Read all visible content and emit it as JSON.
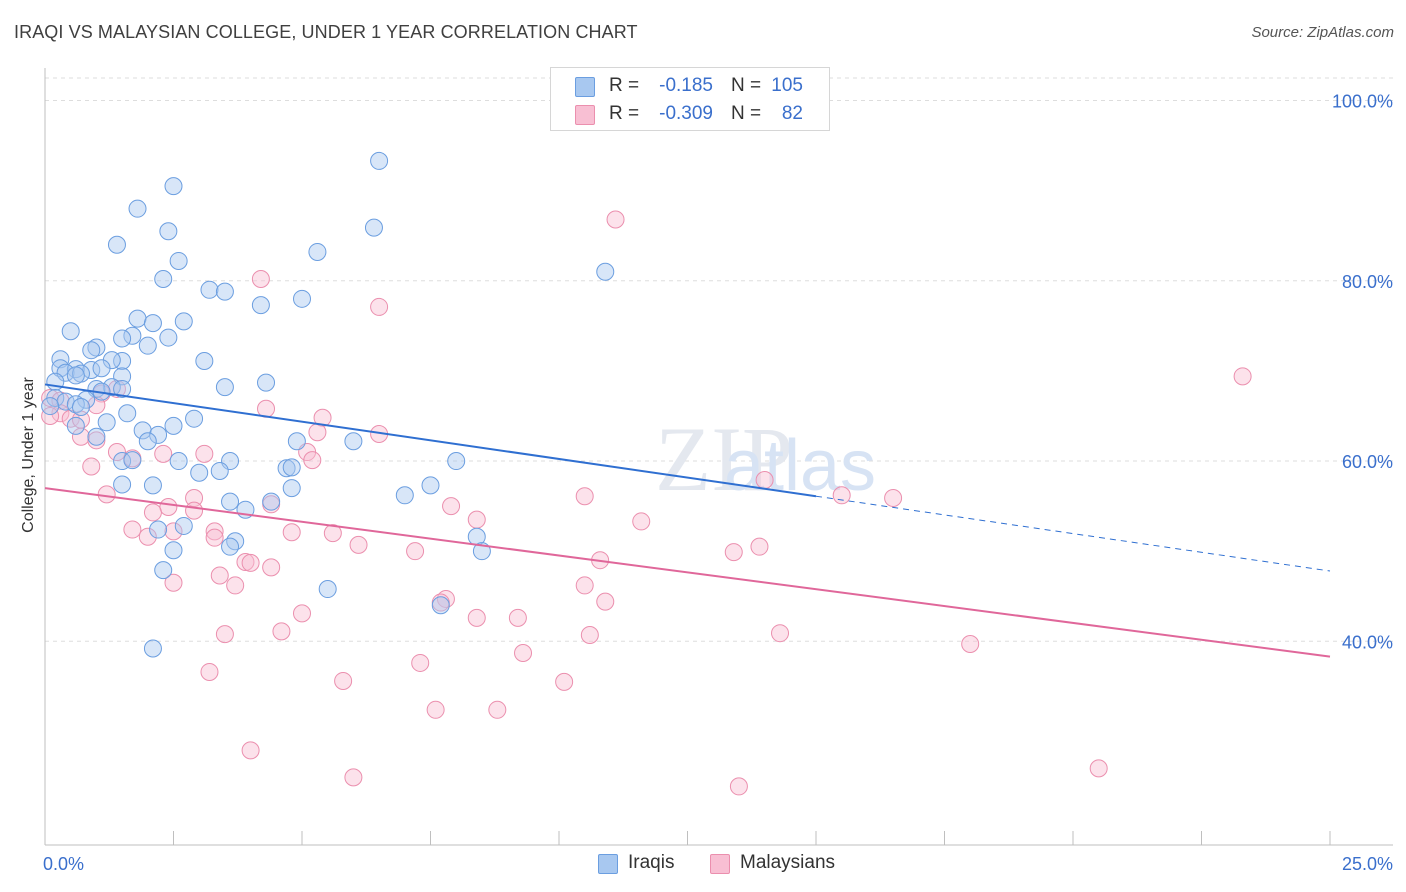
{
  "title": "IRAQI VS MALAYSIAN COLLEGE, UNDER 1 YEAR CORRELATION CHART",
  "source": "Source: ZipAtlas.com",
  "colors": {
    "iraqis_fill": "#a8c8f0",
    "iraqis_stroke": "#6b9ee0",
    "iraqis_line": "#2f6fd1",
    "malaysians_fill": "#f8bfd3",
    "malaysians_stroke": "#eb8fae",
    "malaysians_line": "#e0679a",
    "axis_text": "#3a6fcc",
    "grid": "#dddddd"
  },
  "legend": {
    "rows": [
      {
        "r_label": "R =",
        "r_value": "-0.185",
        "n_label": "N =",
        "n_value": "105"
      },
      {
        "r_label": "R =",
        "r_value": "-0.309",
        "n_label": "N =",
        "n_value": "82"
      }
    ]
  },
  "bottom_legend": [
    "Iraqis",
    "Malaysians"
  ],
  "chart_data": {
    "type": "scatter",
    "title": "IRAQI VS MALAYSIAN COLLEGE, UNDER 1 YEAR CORRELATION CHART",
    "xlabel": "",
    "ylabel": "College, Under 1 year",
    "xlim": [
      0,
      25
    ],
    "ylim": [
      17.4,
      102.5
    ],
    "x_tick_labels": [
      "0.0%",
      "25.0%"
    ],
    "y_ticks": [
      40,
      60,
      80,
      100
    ],
    "y_tick_labels": [
      "40.0%",
      "60.0%",
      "80.0%",
      "100.0%"
    ],
    "watermark": "ZIPatlas",
    "series": [
      {
        "name": "Iraqis",
        "r": -0.185,
        "n": 105,
        "trend": {
          "x0": 0,
          "y0": 68.5,
          "x1": 15,
          "y1": 56.1,
          "dash_to_x": 25,
          "dash_to_y": 47.8
        },
        "points": [
          [
            6.5,
            93.3
          ],
          [
            2.5,
            90.5
          ],
          [
            1.8,
            88.0
          ],
          [
            6.4,
            85.9
          ],
          [
            2.4,
            85.5
          ],
          [
            1.4,
            84.0
          ],
          [
            5.3,
            83.2
          ],
          [
            2.6,
            82.2
          ],
          [
            10.9,
            81.0
          ],
          [
            2.3,
            80.2
          ],
          [
            3.2,
            79.0
          ],
          [
            3.5,
            78.8
          ],
          [
            5.0,
            78.0
          ],
          [
            4.2,
            77.3
          ],
          [
            1.8,
            75.8
          ],
          [
            2.7,
            75.5
          ],
          [
            2.1,
            75.3
          ],
          [
            0.5,
            74.4
          ],
          [
            1.7,
            73.9
          ],
          [
            2.4,
            73.7
          ],
          [
            1.5,
            73.6
          ],
          [
            2.0,
            72.8
          ],
          [
            1.0,
            72.6
          ],
          [
            0.9,
            72.3
          ],
          [
            3.1,
            71.1
          ],
          [
            1.5,
            71.1
          ],
          [
            1.3,
            71.2
          ],
          [
            0.3,
            71.3
          ],
          [
            0.3,
            70.3
          ],
          [
            0.6,
            70.2
          ],
          [
            0.9,
            70.1
          ],
          [
            1.1,
            70.3
          ],
          [
            0.4,
            69.8
          ],
          [
            0.7,
            69.7
          ],
          [
            0.6,
            69.5
          ],
          [
            1.5,
            69.4
          ],
          [
            0.2,
            68.8
          ],
          [
            4.3,
            68.7
          ],
          [
            1.3,
            68.2
          ],
          [
            1.5,
            68.0
          ],
          [
            3.5,
            68.2
          ],
          [
            1.0,
            68.0
          ],
          [
            1.1,
            67.7
          ],
          [
            0.2,
            67.0
          ],
          [
            0.8,
            66.8
          ],
          [
            0.4,
            66.6
          ],
          [
            0.6,
            66.3
          ],
          [
            0.1,
            66.1
          ],
          [
            0.7,
            66.0
          ],
          [
            1.6,
            65.3
          ],
          [
            2.9,
            64.7
          ],
          [
            1.2,
            64.3
          ],
          [
            2.5,
            63.9
          ],
          [
            0.6,
            63.9
          ],
          [
            1.9,
            63.4
          ],
          [
            2.2,
            62.9
          ],
          [
            1.0,
            62.7
          ],
          [
            4.9,
            62.2
          ],
          [
            6.0,
            62.2
          ],
          [
            2.0,
            62.2
          ],
          [
            1.5,
            60.0
          ],
          [
            1.7,
            60.1
          ],
          [
            2.6,
            60.0
          ],
          [
            3.6,
            60.0
          ],
          [
            8.0,
            60.0
          ],
          [
            4.7,
            59.2
          ],
          [
            4.8,
            59.3
          ],
          [
            3.4,
            58.9
          ],
          [
            3.0,
            58.7
          ],
          [
            1.5,
            57.4
          ],
          [
            2.1,
            57.3
          ],
          [
            4.8,
            57.0
          ],
          [
            7.5,
            57.3
          ],
          [
            7.0,
            56.2
          ],
          [
            3.6,
            55.5
          ],
          [
            4.4,
            55.5
          ],
          [
            3.9,
            54.6
          ],
          [
            2.7,
            52.8
          ],
          [
            2.2,
            52.4
          ],
          [
            8.4,
            51.6
          ],
          [
            3.7,
            51.1
          ],
          [
            3.6,
            50.5
          ],
          [
            2.5,
            50.1
          ],
          [
            8.5,
            50.0
          ],
          [
            2.3,
            47.9
          ],
          [
            5.5,
            45.8
          ],
          [
            7.7,
            44.0
          ],
          [
            2.1,
            39.2
          ]
        ]
      },
      {
        "name": "Malaysians",
        "r": -0.309,
        "n": 82,
        "trend": {
          "x0": 0,
          "y0": 57.0,
          "x1": 25,
          "y1": 38.3
        },
        "points": [
          [
            11.1,
            86.8
          ],
          [
            4.2,
            80.2
          ],
          [
            6.5,
            77.1
          ],
          [
            23.3,
            69.4
          ],
          [
            1.4,
            68.0
          ],
          [
            1.1,
            67.5
          ],
          [
            0.1,
            67.0
          ],
          [
            0.3,
            66.7
          ],
          [
            1.0,
            66.2
          ],
          [
            0.3,
            65.3
          ],
          [
            0.1,
            65.0
          ],
          [
            0.5,
            64.7
          ],
          [
            0.7,
            64.6
          ],
          [
            4.3,
            65.8
          ],
          [
            5.4,
            64.8
          ],
          [
            5.3,
            63.2
          ],
          [
            6.5,
            63.0
          ],
          [
            0.7,
            62.7
          ],
          [
            1.0,
            62.3
          ],
          [
            1.4,
            61.0
          ],
          [
            2.3,
            60.8
          ],
          [
            3.1,
            60.8
          ],
          [
            5.1,
            61.0
          ],
          [
            1.7,
            60.3
          ],
          [
            5.2,
            60.1
          ],
          [
            0.9,
            59.4
          ],
          [
            14.0,
            57.9
          ],
          [
            10.5,
            56.1
          ],
          [
            15.5,
            56.2
          ],
          [
            16.5,
            55.9
          ],
          [
            1.2,
            56.3
          ],
          [
            2.9,
            55.9
          ],
          [
            4.4,
            55.2
          ],
          [
            7.9,
            55.0
          ],
          [
            2.4,
            54.9
          ],
          [
            2.9,
            54.5
          ],
          [
            2.1,
            54.3
          ],
          [
            8.4,
            53.5
          ],
          [
            11.6,
            53.3
          ],
          [
            1.7,
            52.4
          ],
          [
            3.3,
            52.2
          ],
          [
            2.5,
            52.2
          ],
          [
            4.8,
            52.1
          ],
          [
            5.6,
            52.0
          ],
          [
            2.0,
            51.6
          ],
          [
            3.3,
            51.5
          ],
          [
            6.1,
            50.7
          ],
          [
            7.2,
            50.0
          ],
          [
            13.4,
            49.9
          ],
          [
            13.9,
            50.5
          ],
          [
            10.8,
            49.0
          ],
          [
            3.9,
            48.8
          ],
          [
            4.0,
            48.7
          ],
          [
            4.4,
            48.2
          ],
          [
            3.4,
            47.3
          ],
          [
            2.5,
            46.5
          ],
          [
            3.7,
            46.2
          ],
          [
            10.5,
            46.2
          ],
          [
            7.8,
            44.7
          ],
          [
            7.7,
            44.3
          ],
          [
            10.9,
            44.4
          ],
          [
            5.0,
            43.1
          ],
          [
            8.4,
            42.6
          ],
          [
            9.2,
            42.6
          ],
          [
            4.6,
            41.1
          ],
          [
            3.5,
            40.8
          ],
          [
            10.6,
            40.7
          ],
          [
            14.3,
            40.9
          ],
          [
            18.0,
            39.7
          ],
          [
            9.3,
            38.7
          ],
          [
            7.3,
            37.6
          ],
          [
            3.2,
            36.6
          ],
          [
            5.8,
            35.6
          ],
          [
            10.1,
            35.5
          ],
          [
            7.6,
            32.4
          ],
          [
            8.8,
            32.4
          ],
          [
            4.0,
            27.9
          ],
          [
            6.0,
            24.9
          ],
          [
            13.5,
            23.9
          ],
          [
            20.5,
            25.9
          ]
        ]
      }
    ]
  }
}
